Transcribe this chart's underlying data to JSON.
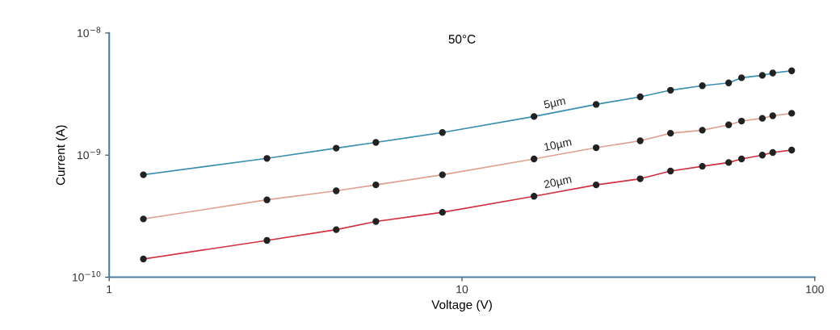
{
  "chart_data": {
    "type": "line",
    "title": "50°C",
    "xlabel": "Voltage (V)",
    "ylabel": "Current (A)",
    "log": "xy",
    "marker": "circle",
    "line_style": "solid",
    "grid": false,
    "legend": false,
    "x": [
      1.25,
      2.8,
      4.4,
      5.7,
      8.8,
      16,
      24,
      32,
      39,
      48,
      57,
      62,
      71,
      76,
      86
    ],
    "xlim": [
      1,
      100
    ],
    "xticks": [
      1,
      10,
      100
    ],
    "ylim": [
      1e-10,
      1e-08
    ],
    "yticks": [
      {
        "value": 1e-10,
        "label": "10$^{−10}$"
      },
      {
        "value": 1e-09,
        "label": "10$^{−9}$"
      },
      {
        "value": 1e-08,
        "label": "10$^{−8}$"
      }
    ],
    "series": [
      {
        "name": "5µm",
        "color": "#3a8fb0",
        "values": [
          6.9e-10,
          9.4e-10,
          1.14e-09,
          1.27e-09,
          1.53e-09,
          2.07e-09,
          2.6e-09,
          3e-09,
          3.4e-09,
          3.7e-09,
          3.9e-09,
          4.3e-09,
          4.5e-09,
          4.7e-09,
          4.9e-09
        ]
      },
      {
        "name": "10µm",
        "color": "#e0a090",
        "values": [
          3e-10,
          4.3e-10,
          5.1e-10,
          5.7e-10,
          6.9e-10,
          9.3e-10,
          1.15e-09,
          1.31e-09,
          1.51e-09,
          1.6e-09,
          1.77e-09,
          1.9e-09,
          2e-09,
          2.1e-09,
          2.2e-09
        ]
      },
      {
        "name": "20µm",
        "color": "#d03040",
        "values": [
          1.41e-10,
          2e-10,
          2.45e-10,
          2.86e-10,
          3.4e-10,
          4.6e-10,
          5.7e-10,
          6.4e-10,
          7.4e-10,
          8.1e-10,
          8.7e-10,
          9.3e-10,
          1e-09,
          1.05e-09,
          1.1e-09
        ]
      }
    ]
  }
}
